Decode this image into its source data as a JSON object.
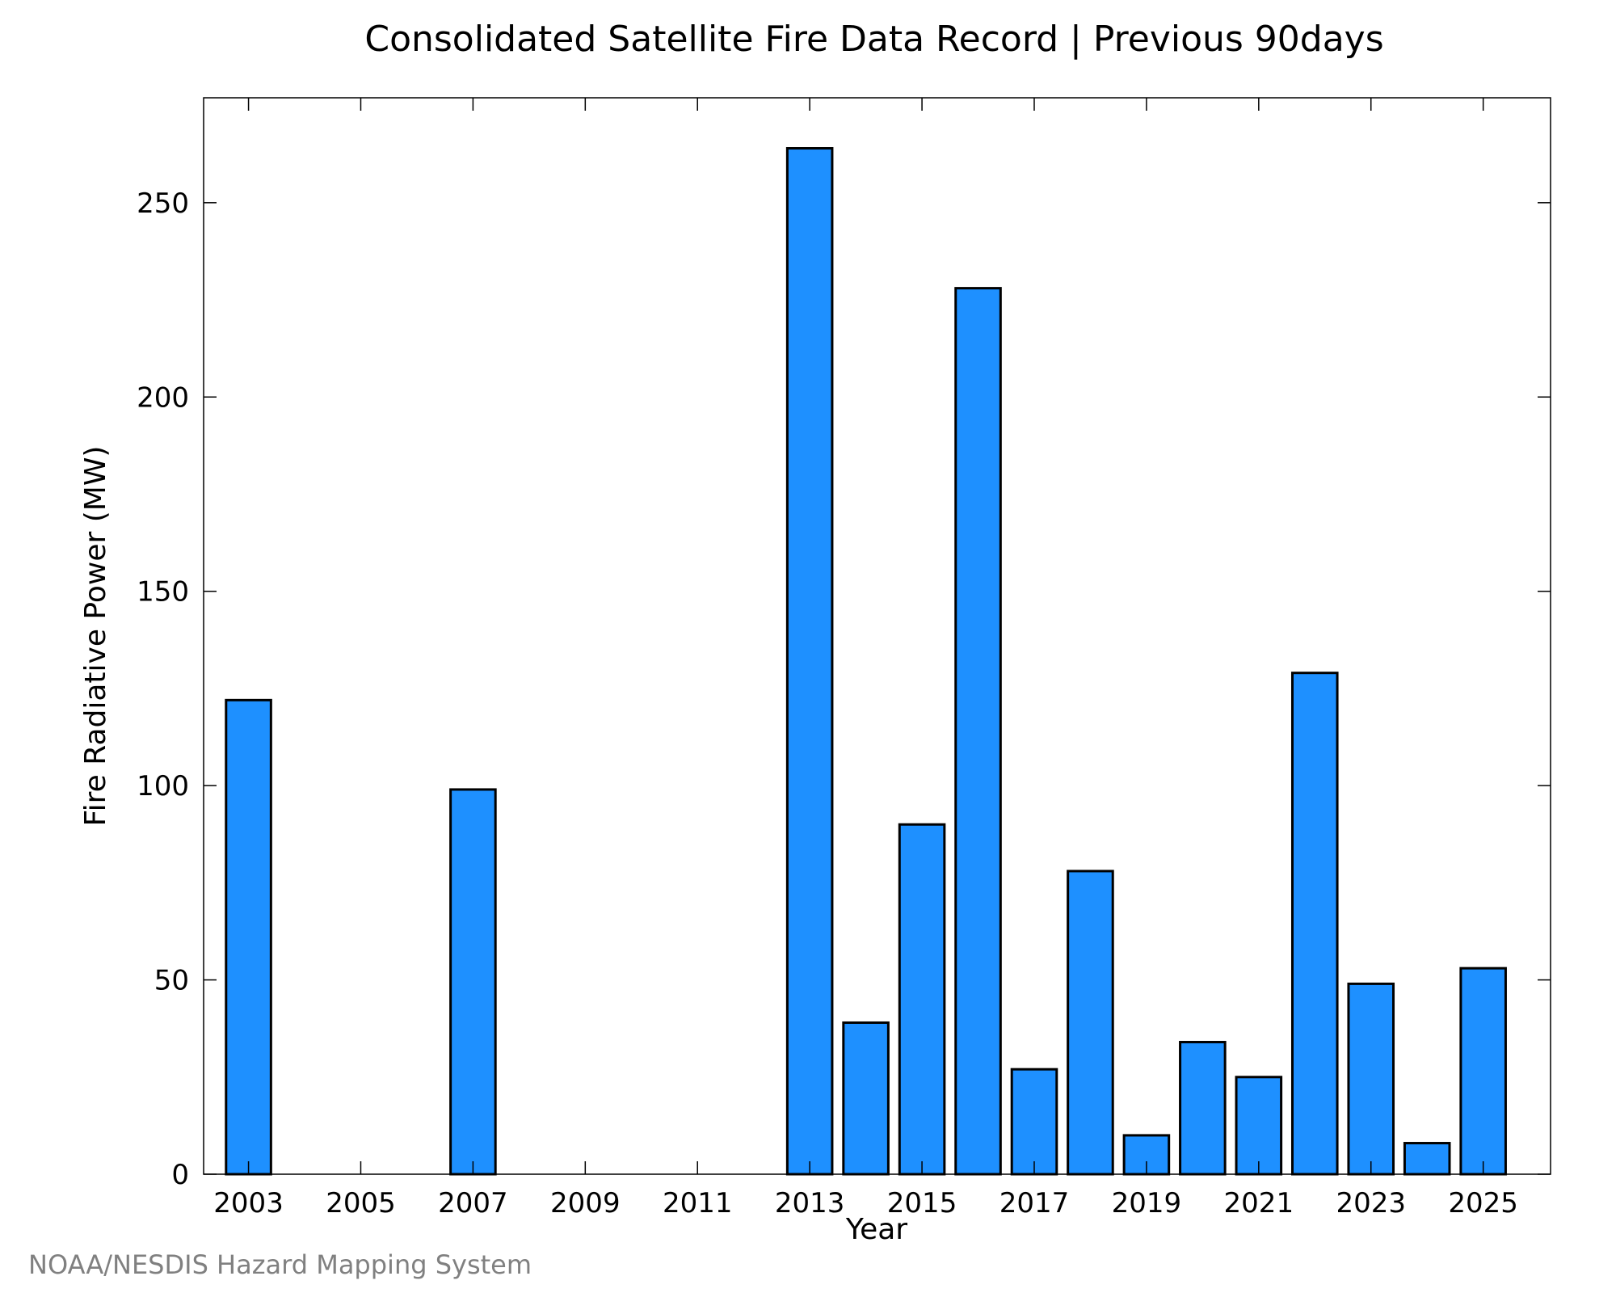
{
  "chart_data": {
    "type": "bar",
    "title": "Consolidated Satellite Fire Data Record | Previous 90days",
    "xlabel": "Year",
    "ylabel": "Fire Radiative Power (MW)",
    "categories": [
      2003,
      2004,
      2005,
      2006,
      2007,
      2008,
      2009,
      2010,
      2011,
      2012,
      2013,
      2014,
      2015,
      2016,
      2017,
      2018,
      2019,
      2020,
      2021,
      2022,
      2023,
      2024,
      2025
    ],
    "values": [
      122,
      0,
      0,
      0,
      99,
      0,
      0,
      0,
      0,
      0,
      264,
      39,
      90,
      228,
      27,
      78,
      10,
      34,
      25,
      129,
      49,
      8,
      53
    ],
    "x_tick_labels": [
      "2003",
      "2005",
      "2007",
      "2009",
      "2011",
      "2013",
      "2015",
      "2017",
      "2019",
      "2021",
      "2023",
      "2025"
    ],
    "x_tick_values": [
      2003,
      2005,
      2007,
      2009,
      2011,
      2013,
      2015,
      2017,
      2019,
      2021,
      2023,
      2025
    ],
    "y_tick_labels": [
      "0",
      "50",
      "100",
      "150",
      "200",
      "250"
    ],
    "y_tick_values": [
      0,
      50,
      100,
      150,
      200,
      250
    ],
    "xlim": [
      2002.2,
      2026.2
    ],
    "ylim": [
      0,
      277
    ],
    "grid": false,
    "legend": "none",
    "bar_color": "#1E90FF",
    "edge_color": "#000000"
  },
  "footer": {
    "credit": "NOAA/NESDIS Hazard Mapping System"
  }
}
